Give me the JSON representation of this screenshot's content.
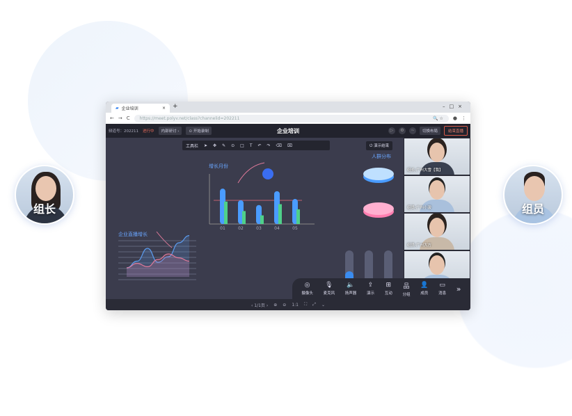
{
  "browser": {
    "tab_title": "企业培训",
    "tab_close": "×",
    "new_tab": "+",
    "url": "https://meet.polyv.net/class?channelid=202211"
  },
  "header": {
    "channel": "频道号：202211",
    "live_status": "进行中",
    "discussion": "内部研讨 ›",
    "record": "⊙ 开始录制",
    "title": "企业培训",
    "switch_layout": "切换布局",
    "end_live": "结束直播"
  },
  "toolbar": {
    "label": "工具栏",
    "demo_end": "⏻ 演示结束",
    "icons": [
      "pointer-icon",
      "move-icon",
      "pen-icon",
      "circle-icon",
      "rectangle-icon",
      "text-icon",
      "undo-icon",
      "redo-icon",
      "eraser-icon",
      "clear-icon"
    ]
  },
  "whiteboard": {
    "bar_title": "增长月份",
    "line_title": "企业直播增长",
    "pie_title": "人群分布"
  },
  "chart_data": [
    {
      "type": "bar",
      "title": "增长月份",
      "categories": [
        "01",
        "02",
        "03",
        "04",
        "05"
      ],
      "series": [
        {
          "values": [
            82,
            55,
            44,
            76,
            58
          ],
          "color": "#4a9cff"
        },
        {
          "values": [
            52,
            30,
            20,
            46,
            34
          ],
          "color": "#4fd08a"
        }
      ]
    },
    {
      "type": "line",
      "title": "企业直播增长",
      "series": [
        {
          "values": [
            10,
            22,
            45,
            20,
            30,
            55,
            68
          ],
          "color": "#5b9cf0"
        },
        {
          "values": [
            10,
            18,
            12,
            25,
            35,
            28,
            22
          ],
          "color": "#e07a9a"
        }
      ]
    }
  ],
  "videos": [
    {
      "name": "组长-广州大雪【我】"
    },
    {
      "name": "组员-广州小骏"
    },
    {
      "name": "组员-广州大方"
    },
    {
      "name": ""
    }
  ],
  "bottom_bar": [
    {
      "icon": "◎",
      "label": "摄像头"
    },
    {
      "icon": "🎙",
      "label": "麦克风"
    },
    {
      "icon": "🔈",
      "label": "扬声器"
    },
    {
      "icon": "⇪",
      "label": "演示"
    },
    {
      "icon": "⊞",
      "label": "互动"
    },
    {
      "icon": "品",
      "label": "分组"
    },
    {
      "icon": "👤",
      "label": "成员"
    },
    {
      "icon": "▭",
      "label": "消息"
    }
  ],
  "more": "»",
  "status": {
    "page": "‹ 1/1页 ›",
    "icons": [
      "⊕",
      "⊖",
      "1:1",
      "⛶",
      "⤢",
      "⌄"
    ]
  },
  "avatars": {
    "left": "组长",
    "right": "组员"
  }
}
